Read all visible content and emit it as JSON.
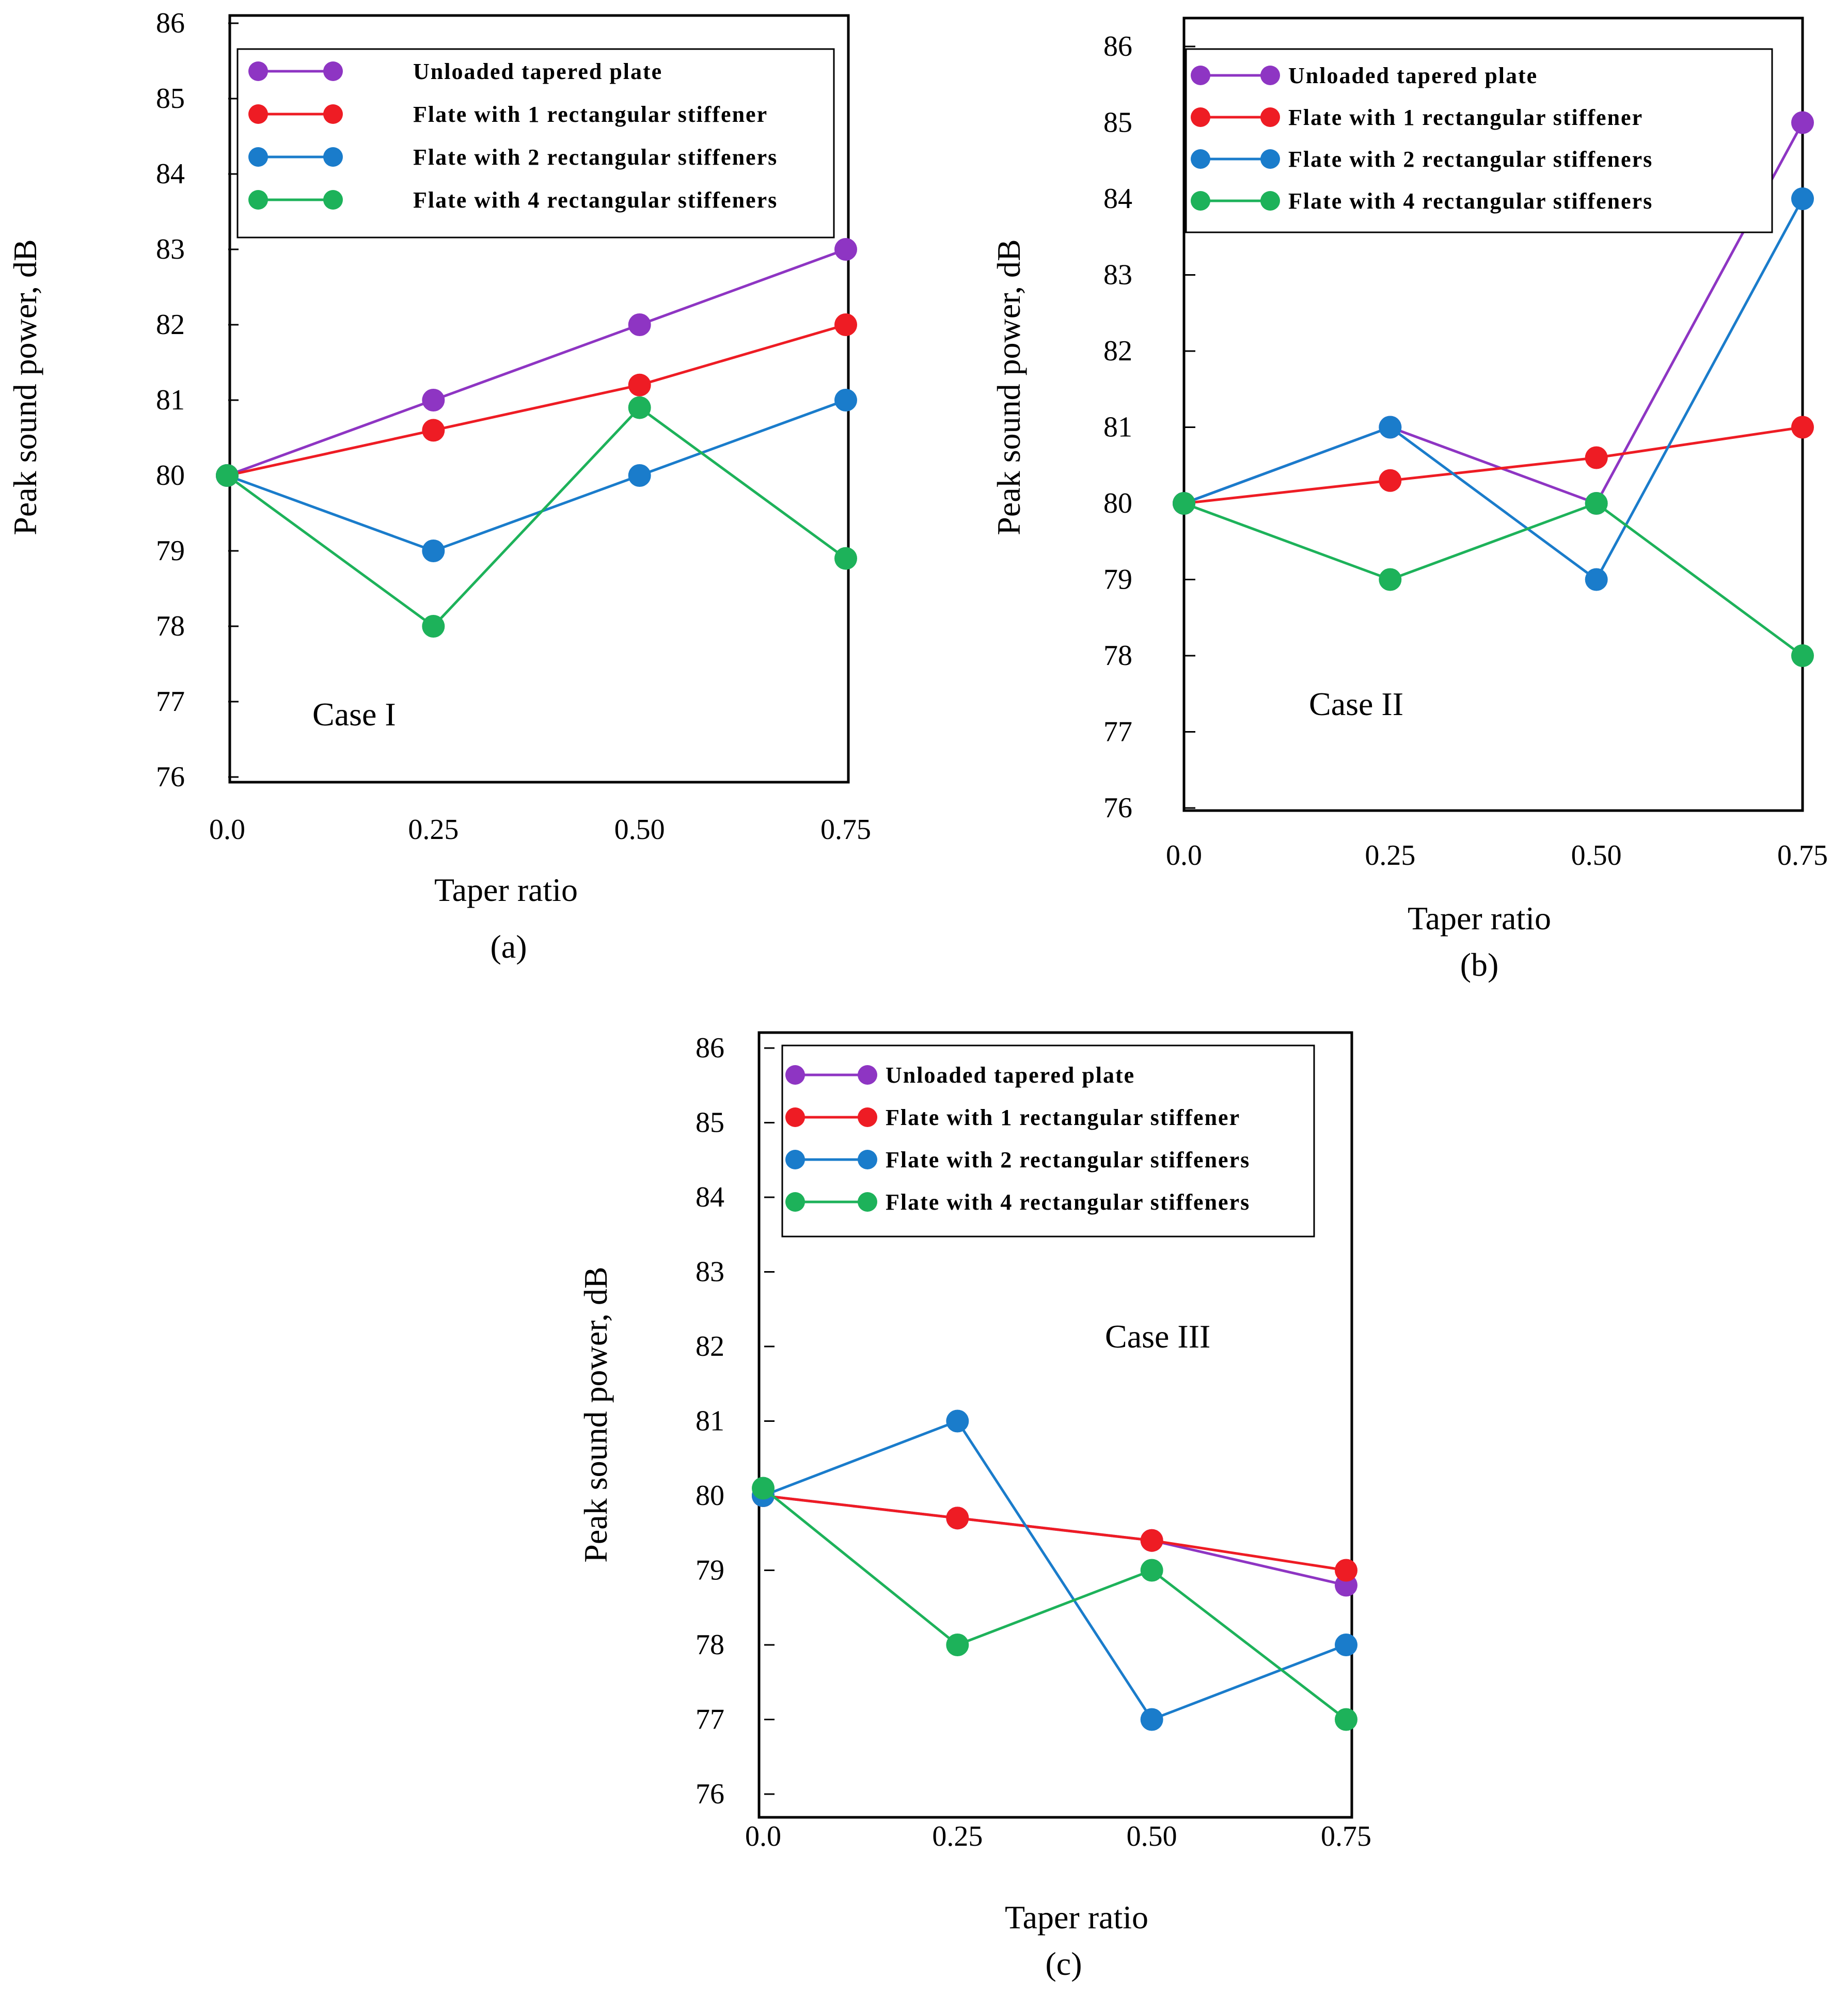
{
  "colors": {
    "unloaded": "#8E35C3",
    "one": "#EE1C24",
    "two": "#1A7CCB",
    "four": "#1DB25A"
  },
  "legend_labels": [
    "Unloaded tapered plate",
    "Flate with 1 rectangular stiffener",
    "Flate with 2 rectangular stiffeners",
    "Flate with 4 rectangular stiffeners"
  ],
  "chart_data": [
    {
      "type": "line",
      "id": "a",
      "panel_label": "(a)",
      "annotation": "Case I",
      "xlabel": "Taper ratio",
      "ylabel": "Peak sound power, dB",
      "x": [
        0.0,
        0.25,
        0.5,
        0.75
      ],
      "x_tick_labels": [
        "0.0",
        "0.25",
        "0.50",
        "0.75"
      ],
      "y_ticks": [
        76,
        77,
        78,
        79,
        80,
        81,
        82,
        83,
        84,
        85,
        86
      ],
      "ylim": [
        76,
        86
      ],
      "series": [
        {
          "key": "unloaded",
          "name": "Unloaded tapered plate",
          "values": [
            80,
            81,
            82,
            83
          ]
        },
        {
          "key": "one",
          "name": "Flate with 1 rectangular stiffener",
          "values": [
            80,
            80.6,
            81.2,
            82
          ]
        },
        {
          "key": "two",
          "name": "Flate with 2 rectangular stiffeners",
          "values": [
            80,
            79,
            80,
            81
          ]
        },
        {
          "key": "four",
          "name": "Flate with 4 rectangular stiffeners",
          "values": [
            80,
            78,
            80.9,
            78.9
          ]
        }
      ]
    },
    {
      "type": "line",
      "id": "b",
      "panel_label": "(b)",
      "annotation": "Case II",
      "xlabel": "Taper ratio",
      "ylabel": "Peak sound power, dB",
      "x": [
        0.0,
        0.25,
        0.5,
        0.75
      ],
      "x_tick_labels": [
        "0.0",
        "0.25",
        "0.50",
        "0.75"
      ],
      "y_ticks": [
        76,
        77,
        78,
        79,
        80,
        81,
        82,
        83,
        84,
        85,
        86
      ],
      "ylim": [
        76,
        86
      ],
      "series": [
        {
          "key": "unloaded",
          "name": "Unloaded tapered plate",
          "values": [
            80,
            81,
            80,
            85
          ]
        },
        {
          "key": "one",
          "name": "Flate with 1 rectangular stiffener",
          "values": [
            80,
            80.3,
            80.6,
            81
          ]
        },
        {
          "key": "two",
          "name": "Flate with 2 rectangular stiffeners",
          "values": [
            80,
            81,
            79,
            84
          ]
        },
        {
          "key": "four",
          "name": "Flate with 4 rectangular stiffeners",
          "values": [
            80,
            79,
            80,
            78
          ]
        }
      ]
    },
    {
      "type": "line",
      "id": "c",
      "panel_label": "(c)",
      "annotation": "Case III",
      "xlabel": "Taper ratio",
      "ylabel": "Peak sound power, dB",
      "x": [
        0.0,
        0.25,
        0.5,
        0.75
      ],
      "x_tick_labels": [
        "0.0",
        "0.25",
        "0.50",
        "0.75"
      ],
      "y_ticks": [
        76,
        77,
        78,
        79,
        80,
        81,
        82,
        83,
        84,
        85,
        86
      ],
      "ylim": [
        76,
        86
      ],
      "series": [
        {
          "key": "unloaded",
          "name": "Unloaded tapered plate",
          "values": [
            80,
            79.7,
            79.4,
            78.8
          ]
        },
        {
          "key": "one",
          "name": "Flate with 1 rectangular stiffener",
          "values": [
            80,
            79.7,
            79.4,
            79
          ]
        },
        {
          "key": "two",
          "name": "Flate with 2 rectangular stiffeners",
          "values": [
            80,
            81,
            77,
            78
          ]
        },
        {
          "key": "four",
          "name": "Flate with 4 rectangular stiffeners",
          "values": [
            80.1,
            78,
            79,
            77
          ]
        }
      ]
    }
  ]
}
